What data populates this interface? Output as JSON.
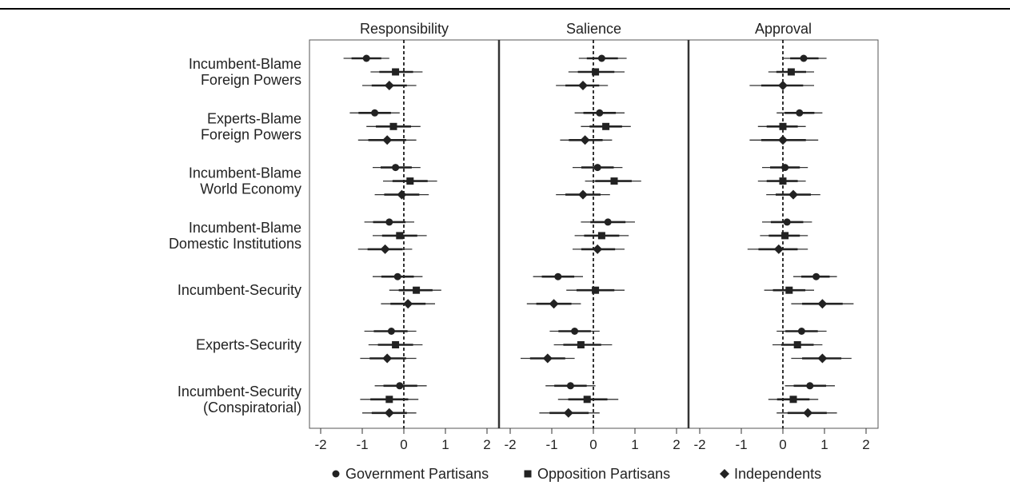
{
  "chart_data": {
    "type": "scatter",
    "subtype": "coefficient plot with confidence intervals",
    "panels": [
      "Responsibility",
      "Salience",
      "Approval"
    ],
    "x_ticks": [
      -2,
      -1,
      0,
      1,
      2
    ],
    "xlim": [
      -2.2,
      2.2
    ],
    "reference_line": 0,
    "treatments": [
      {
        "line1": "Incumbent-Blame",
        "line2": "Foreign Powers"
      },
      {
        "line1": "Experts-Blame",
        "line2": "Foreign Powers"
      },
      {
        "line1": "Incumbent-Blame",
        "line2": "World Economy"
      },
      {
        "line1": "Incumbent-Blame",
        "line2": "Domestic Institutions"
      },
      {
        "line1": "Incumbent-Security",
        "line2": ""
      },
      {
        "line1": "Experts-Security",
        "line2": ""
      },
      {
        "line1": "Incumbent-Security",
        "line2": "(Conspiratorial)"
      }
    ],
    "series": [
      {
        "name": "Government Partisans",
        "marker": "circle",
        "estimates": [
          [
            [
              -0.9,
              -1.45,
              -0.35
            ],
            [
              0.2,
              -0.35,
              0.8
            ],
            [
              0.5,
              0.0,
              1.05
            ]
          ],
          [
            [
              -0.7,
              -1.3,
              -0.1
            ],
            [
              0.15,
              -0.45,
              0.75
            ],
            [
              0.4,
              -0.15,
              0.95
            ]
          ],
          [
            [
              -0.2,
              -0.75,
              0.4
            ],
            [
              0.1,
              -0.5,
              0.7
            ],
            [
              0.05,
              -0.5,
              0.6
            ]
          ],
          [
            [
              -0.35,
              -0.95,
              0.25
            ],
            [
              0.35,
              -0.3,
              1.0
            ],
            [
              0.1,
              -0.5,
              0.7
            ]
          ],
          [
            [
              -0.15,
              -0.75,
              0.45
            ],
            [
              -0.85,
              -1.45,
              -0.25
            ],
            [
              0.8,
              0.25,
              1.3
            ]
          ],
          [
            [
              -0.3,
              -0.95,
              0.3
            ],
            [
              -0.45,
              -1.05,
              0.15
            ],
            [
              0.45,
              -0.15,
              1.05
            ]
          ],
          [
            [
              -0.1,
              -0.7,
              0.55
            ],
            [
              -0.55,
              -1.15,
              0.05
            ],
            [
              0.65,
              0.05,
              1.25
            ]
          ]
        ]
      },
      {
        "name": "Opposition Partisans",
        "marker": "square",
        "estimates": [
          [
            [
              -0.2,
              -0.8,
              0.45
            ],
            [
              0.05,
              -0.6,
              0.75
            ],
            [
              0.2,
              -0.35,
              0.75
            ]
          ],
          [
            [
              -0.25,
              -0.9,
              0.4
            ],
            [
              0.3,
              -0.3,
              0.9
            ],
            [
              0.0,
              -0.6,
              0.55
            ]
          ],
          [
            [
              0.15,
              -0.5,
              0.8
            ],
            [
              0.5,
              -0.2,
              1.15
            ],
            [
              0.0,
              -0.6,
              0.55
            ]
          ],
          [
            [
              -0.1,
              -0.75,
              0.55
            ],
            [
              0.2,
              -0.45,
              0.85
            ],
            [
              0.05,
              -0.55,
              0.6
            ]
          ],
          [
            [
              0.3,
              -0.35,
              0.9
            ],
            [
              0.05,
              -0.65,
              0.75
            ],
            [
              0.15,
              -0.45,
              0.75
            ]
          ],
          [
            [
              -0.2,
              -0.85,
              0.45
            ],
            [
              -0.3,
              -0.95,
              0.45
            ],
            [
              0.35,
              -0.25,
              0.95
            ]
          ],
          [
            [
              -0.35,
              -1.05,
              0.35
            ],
            [
              -0.15,
              -0.85,
              0.6
            ],
            [
              0.25,
              -0.35,
              0.85
            ]
          ]
        ]
      },
      {
        "name": "Independents",
        "marker": "diamond",
        "estimates": [
          [
            [
              -0.35,
              -1.0,
              0.3
            ],
            [
              -0.25,
              -0.9,
              0.35
            ],
            [
              0.0,
              -0.8,
              0.75
            ]
          ],
          [
            [
              -0.4,
              -1.1,
              0.3
            ],
            [
              -0.2,
              -0.8,
              0.45
            ],
            [
              0.0,
              -0.8,
              0.85
            ]
          ],
          [
            [
              -0.05,
              -0.7,
              0.6
            ],
            [
              -0.25,
              -0.9,
              0.4
            ],
            [
              0.25,
              -0.4,
              0.9
            ]
          ],
          [
            [
              -0.45,
              -1.1,
              0.2
            ],
            [
              0.1,
              -0.5,
              0.75
            ],
            [
              -0.1,
              -0.85,
              0.6
            ]
          ],
          [
            [
              0.1,
              -0.55,
              0.75
            ],
            [
              -0.95,
              -1.6,
              -0.3
            ],
            [
              0.95,
              0.2,
              1.7
            ]
          ],
          [
            [
              -0.4,
              -1.05,
              0.3
            ],
            [
              -1.1,
              -1.75,
              -0.45
            ],
            [
              0.95,
              0.2,
              1.65
            ]
          ],
          [
            [
              -0.35,
              -1.0,
              0.3
            ],
            [
              -0.6,
              -1.3,
              0.15
            ],
            [
              0.6,
              -0.15,
              1.3
            ]
          ]
        ]
      }
    ],
    "legend_position": "bottom"
  }
}
